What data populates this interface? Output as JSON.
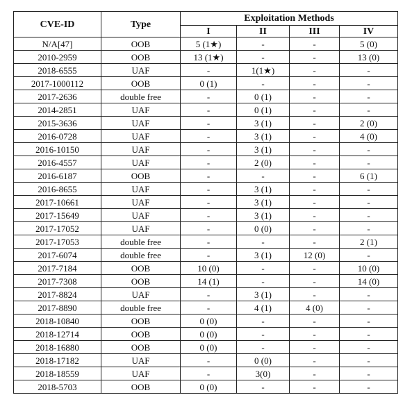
{
  "header": {
    "cve_id": "CVE-ID",
    "type": "Type",
    "exploitation_methods": "Exploitation Methods",
    "methods": [
      "I",
      "II",
      "III",
      "IV"
    ]
  },
  "rows": [
    [
      "N/A[47]",
      "OOB",
      "5 (1★)",
      "-",
      "-",
      "5 (0)"
    ],
    [
      "2010-2959",
      "OOB",
      "13 (1★)",
      "-",
      "-",
      "13 (0)"
    ],
    [
      "2018-6555",
      "UAF",
      "-",
      "1(1★)",
      "-",
      "-"
    ],
    [
      "2017-1000112",
      "OOB",
      "0 (1)",
      "-",
      "-",
      "-"
    ],
    [
      "2017-2636",
      "double free",
      "-",
      "0 (1)",
      "-",
      "-"
    ],
    [
      "2014-2851",
      "UAF",
      "-",
      "0 (1)",
      "-",
      "-"
    ],
    [
      "2015-3636",
      "UAF",
      "-",
      "3 (1)",
      "-",
      "2 (0)"
    ],
    [
      "2016-0728",
      "UAF",
      "-",
      "3 (1)",
      "-",
      "4 (0)"
    ],
    [
      "2016-10150",
      "UAF",
      "-",
      "3 (1)",
      "-",
      "-"
    ],
    [
      "2016-4557",
      "UAF",
      "-",
      "2 (0)",
      "-",
      "-"
    ],
    [
      "2016-6187",
      "OOB",
      "-",
      "-",
      "-",
      "6 (1)"
    ],
    [
      "2016-8655",
      "UAF",
      "-",
      "3 (1)",
      "-",
      "-"
    ],
    [
      "2017-10661",
      "UAF",
      "-",
      "3 (1)",
      "-",
      "-"
    ],
    [
      "2017-15649",
      "UAF",
      "-",
      "3 (1)",
      "-",
      "-"
    ],
    [
      "2017-17052",
      "UAF",
      "-",
      "0 (0)",
      "-",
      "-"
    ],
    [
      "2017-17053",
      "double free",
      "-",
      "-",
      "-",
      "2 (1)"
    ],
    [
      "2017-6074",
      "double free",
      "-",
      "3 (1)",
      "12 (0)",
      "-"
    ],
    [
      "2017-7184",
      "OOB",
      "10 (0)",
      "-",
      "-",
      "10 (0)"
    ],
    [
      "2017-7308",
      "OOB",
      "14 (1)",
      "-",
      "-",
      "14 (0)"
    ],
    [
      "2017-8824",
      "UAF",
      "-",
      "3 (1)",
      "-",
      "-"
    ],
    [
      "2017-8890",
      "double free",
      "-",
      "4 (1)",
      "4 (0)",
      "-"
    ],
    [
      "2018-10840",
      "OOB",
      "0 (0)",
      "-",
      "-",
      "-"
    ],
    [
      "2018-12714",
      "OOB",
      "0 (0)",
      "-",
      "-",
      "-"
    ],
    [
      "2018-16880",
      "OOB",
      "0 (0)",
      "-",
      "-",
      "-"
    ],
    [
      "2018-17182",
      "UAF",
      "-",
      "0 (0)",
      "-",
      "-"
    ],
    [
      "2018-18559",
      "UAF",
      "-",
      "3(0)",
      "-",
      "-"
    ],
    [
      "2018-5703",
      "OOB",
      "0 (0)",
      "-",
      "-",
      "-"
    ]
  ]
}
